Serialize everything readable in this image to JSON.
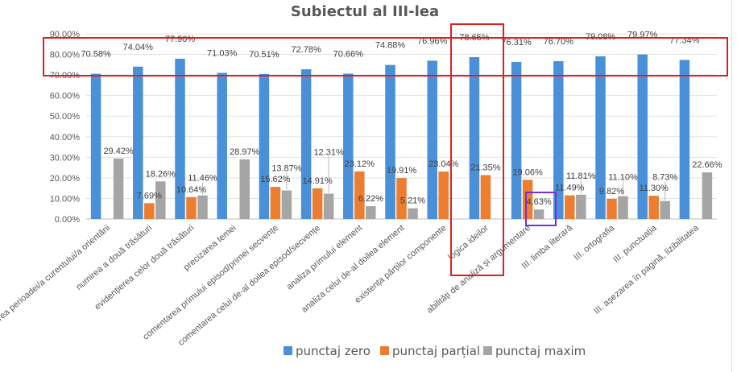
{
  "chart_data": {
    "type": "bar",
    "title": "Subiectul al III-lea",
    "xlabel": "",
    "ylabel": "",
    "ylim": [
      0,
      90
    ],
    "yticks": [
      "0.00%",
      "10.00%",
      "20.00%",
      "30.00%",
      "40.00%",
      "50.00%",
      "60.00%",
      "70.00%",
      "80.00%",
      "90.00%"
    ],
    "grid": true,
    "legend_position": "bottom",
    "categories": [
      "precizarea perioadei/a curentului/a orientării",
      "numirea a două trăsături",
      "evidențierea celor două trăsături",
      "precizarea temei",
      "comentarea primului episod/primei secvențe",
      "comentarea celui de-al doilea episod/secvențe",
      "analiza primului element",
      "analiza celui de-al doilea element",
      "existența părților componente",
      "logica ideilor",
      "abilități de analiză și argumentare",
      "III. limba literară",
      "III. ortografia",
      "III. punctuația",
      "III. așezarea în pagină, lizibilitatea"
    ],
    "series": [
      {
        "name": "punctaj zero",
        "color": "#4a90d9",
        "values": [
          70.58,
          74.04,
          77.9,
          71.03,
          70.51,
          72.78,
          70.66,
          74.88,
          76.96,
          78.65,
          76.31,
          76.7,
          79.08,
          79.97,
          77.34
        ],
        "labels": [
          "70.58%",
          "74.04%",
          "77.90%",
          "71.03%",
          "70.51%",
          "72.78%",
          "70.66%",
          "74.88%",
          "76.96%",
          "78.65%",
          "76.31%",
          "76.70%",
          "79.08%",
          "79.97%",
          "77.34%"
        ]
      },
      {
        "name": "punctaj parțial",
        "color": "#ed7d31",
        "values": [
          null,
          7.69,
          10.64,
          null,
          15.62,
          14.91,
          23.12,
          19.91,
          23.04,
          21.35,
          19.06,
          11.49,
          9.82,
          11.3,
          null
        ],
        "labels": [
          null,
          "7.69%",
          "10.64%",
          null,
          "15.62%",
          "14.91%",
          "23.12%",
          "19.91%",
          "23.04%",
          "21.35%",
          "19.06%",
          "11.49%",
          "9.82%",
          "11.30%",
          null
        ]
      },
      {
        "name": "punctaj maxim",
        "color": "#a5a5a5",
        "values": [
          29.42,
          18.26,
          11.46,
          28.97,
          13.87,
          12.31,
          6.22,
          5.21,
          null,
          null,
          4.63,
          11.81,
          11.1,
          8.73,
          22.66
        ],
        "labels": [
          "29.42%",
          "18.26%",
          "11.46%",
          "28.97%",
          "13.87%",
          "12.31%",
          "6.22%",
          "5.21%",
          null,
          null,
          "4.63%",
          "11.81%",
          "11.10%",
          "8.73%",
          "22.66%"
        ]
      }
    ],
    "annotations": {
      "highlight_color": "#e02020",
      "small_highlight_color": "#7b2fd6"
    }
  }
}
